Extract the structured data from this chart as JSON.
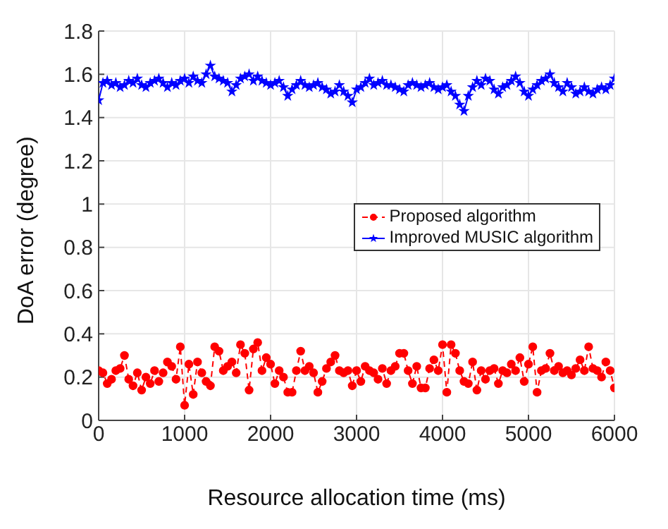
{
  "chart_data": {
    "type": "line",
    "xlabel": "Resource allocation time (ms)",
    "ylabel": "DoA error (degree)",
    "x": [
      0,
      50,
      100,
      150,
      200,
      250,
      300,
      350,
      400,
      450,
      500,
      550,
      600,
      650,
      700,
      750,
      800,
      850,
      900,
      950,
      1000,
      1050,
      1100,
      1150,
      1200,
      1250,
      1300,
      1350,
      1400,
      1450,
      1500,
      1550,
      1600,
      1650,
      1700,
      1750,
      1800,
      1850,
      1900,
      1950,
      2000,
      2050,
      2100,
      2150,
      2200,
      2250,
      2300,
      2350,
      2400,
      2450,
      2500,
      2550,
      2600,
      2650,
      2700,
      2750,
      2800,
      2850,
      2900,
      2950,
      3000,
      3050,
      3100,
      3150,
      3200,
      3250,
      3300,
      3350,
      3400,
      3450,
      3500,
      3550,
      3600,
      3650,
      3700,
      3750,
      3800,
      3850,
      3900,
      3950,
      4000,
      4050,
      4100,
      4150,
      4200,
      4250,
      4300,
      4350,
      4400,
      4450,
      4500,
      4550,
      4600,
      4650,
      4700,
      4750,
      4800,
      4850,
      4900,
      4950,
      5000,
      5050,
      5100,
      5150,
      5200,
      5250,
      5300,
      5350,
      5400,
      5450,
      5500,
      5550,
      5600,
      5650,
      5700,
      5750,
      5800,
      5850,
      5900,
      5950,
      6000
    ],
    "series": [
      {
        "name": "Proposed algorithm",
        "color": "#ff0000",
        "marker": "circle",
        "line_style": "dashed",
        "values": [
          0.23,
          0.22,
          0.17,
          0.19,
          0.23,
          0.24,
          0.3,
          0.19,
          0.16,
          0.22,
          0.14,
          0.2,
          0.17,
          0.23,
          0.18,
          0.22,
          0.27,
          0.25,
          0.19,
          0.34,
          0.07,
          0.26,
          0.12,
          0.27,
          0.22,
          0.18,
          0.16,
          0.34,
          0.32,
          0.23,
          0.25,
          0.27,
          0.22,
          0.35,
          0.31,
          0.14,
          0.33,
          0.36,
          0.23,
          0.29,
          0.26,
          0.17,
          0.23,
          0.2,
          0.13,
          0.13,
          0.23,
          0.32,
          0.23,
          0.25,
          0.22,
          0.13,
          0.18,
          0.24,
          0.27,
          0.3,
          0.23,
          0.22,
          0.23,
          0.16,
          0.23,
          0.18,
          0.25,
          0.23,
          0.22,
          0.19,
          0.24,
          0.17,
          0.23,
          0.25,
          0.31,
          0.31,
          0.23,
          0.17,
          0.25,
          0.15,
          0.15,
          0.24,
          0.28,
          0.23,
          0.35,
          0.13,
          0.35,
          0.31,
          0.23,
          0.18,
          0.17,
          0.27,
          0.14,
          0.23,
          0.19,
          0.23,
          0.24,
          0.17,
          0.23,
          0.22,
          0.26,
          0.23,
          0.29,
          0.18,
          0.26,
          0.34,
          0.13,
          0.23,
          0.24,
          0.31,
          0.23,
          0.25,
          0.22,
          0.23,
          0.21,
          0.24,
          0.28,
          0.23,
          0.34,
          0.24,
          0.23,
          0.2,
          0.27,
          0.23,
          0.15
        ]
      },
      {
        "name": "Improved MUSIC algorithm",
        "color": "#0000ff",
        "marker": "star",
        "line_style": "solid",
        "values": [
          1.48,
          1.56,
          1.57,
          1.55,
          1.56,
          1.54,
          1.55,
          1.57,
          1.56,
          1.58,
          1.55,
          1.54,
          1.56,
          1.57,
          1.58,
          1.56,
          1.54,
          1.56,
          1.55,
          1.57,
          1.58,
          1.56,
          1.59,
          1.57,
          1.56,
          1.6,
          1.64,
          1.59,
          1.58,
          1.57,
          1.56,
          1.52,
          1.55,
          1.58,
          1.59,
          1.6,
          1.57,
          1.59,
          1.57,
          1.56,
          1.55,
          1.56,
          1.57,
          1.54,
          1.5,
          1.53,
          1.55,
          1.57,
          1.55,
          1.54,
          1.55,
          1.56,
          1.54,
          1.53,
          1.51,
          1.52,
          1.55,
          1.52,
          1.5,
          1.47,
          1.53,
          1.54,
          1.56,
          1.58,
          1.55,
          1.56,
          1.57,
          1.55,
          1.55,
          1.54,
          1.53,
          1.52,
          1.55,
          1.56,
          1.55,
          1.54,
          1.55,
          1.56,
          1.54,
          1.53,
          1.54,
          1.55,
          1.52,
          1.5,
          1.46,
          1.43,
          1.5,
          1.54,
          1.57,
          1.55,
          1.58,
          1.57,
          1.53,
          1.51,
          1.54,
          1.55,
          1.57,
          1.59,
          1.56,
          1.52,
          1.5,
          1.53,
          1.55,
          1.57,
          1.58,
          1.6,
          1.56,
          1.54,
          1.52,
          1.56,
          1.54,
          1.51,
          1.52,
          1.54,
          1.52,
          1.51,
          1.53,
          1.54,
          1.53,
          1.55,
          1.58
        ]
      }
    ],
    "xlim": [
      0,
      6000
    ],
    "xticks": [
      0,
      1000,
      2000,
      3000,
      4000,
      5000,
      6000
    ],
    "ylim": [
      0,
      1.8
    ],
    "yticks": [
      0,
      0.2,
      0.4,
      0.6,
      0.8,
      1,
      1.2,
      1.4,
      1.6,
      1.8
    ],
    "grid": true,
    "legend": "right"
  }
}
